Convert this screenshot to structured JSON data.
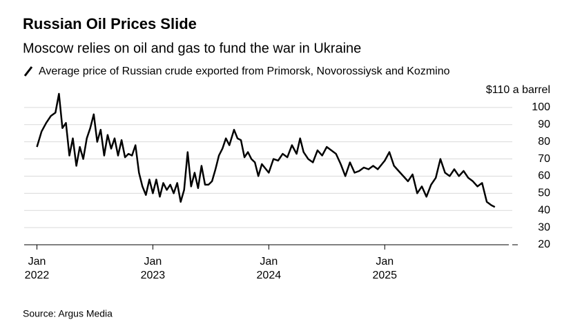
{
  "chart_data": {
    "type": "line",
    "title": "Russian Oil Prices Slide",
    "subtitle": "Moscow relies on oil and gas to fund the war in Ukraine",
    "source": "Source: Argus Media",
    "x": [
      2022.0,
      2022.04,
      2022.08,
      2022.12,
      2022.16,
      2022.19,
      2022.22,
      2022.25,
      2022.28,
      2022.31,
      2022.34,
      2022.37,
      2022.4,
      2022.43,
      2022.46,
      2022.49,
      2022.52,
      2022.55,
      2022.58,
      2022.61,
      2022.64,
      2022.67,
      2022.7,
      2022.73,
      2022.76,
      2022.79,
      2022.82,
      2022.85,
      2022.88,
      2022.91,
      2022.94,
      2022.97,
      2023.0,
      2023.03,
      2023.06,
      2023.09,
      2023.12,
      2023.15,
      2023.18,
      2023.21,
      2023.24,
      2023.27,
      2023.3,
      2023.33,
      2023.36,
      2023.39,
      2023.42,
      2023.45,
      2023.48,
      2023.51,
      2023.54,
      2023.57,
      2023.6,
      2023.63,
      2023.66,
      2023.7,
      2023.73,
      2023.76,
      2023.79,
      2023.82,
      2023.85,
      2023.88,
      2023.91,
      2023.94,
      2024.0,
      2024.04,
      2024.08,
      2024.12,
      2024.16,
      2024.2,
      2024.24,
      2024.27,
      2024.3,
      2024.34,
      2024.38,
      2024.42,
      2024.46,
      2024.5,
      2024.54,
      2024.58,
      2024.62,
      2024.66,
      2024.7,
      2024.74,
      2024.78,
      2024.82,
      2024.86,
      2024.9,
      2024.94,
      2025.0,
      2025.04,
      2025.08,
      2025.12,
      2025.16,
      2025.2,
      2025.24,
      2025.28,
      2025.32,
      2025.36,
      2025.4,
      2025.44,
      2025.48,
      2025.52,
      2025.56,
      2025.6,
      2025.64,
      2025.68,
      2025.72,
      2025.76,
      2025.8,
      2025.84,
      2025.88,
      2025.92,
      2025.95
    ],
    "series": [
      {
        "name": "Average price of Russian crude exported from Primorsk, Novorossiysk and Kozmino",
        "color": "#000000",
        "values": [
          77,
          86,
          91,
          95,
          97,
          108,
          88,
          91,
          72,
          82,
          66,
          77,
          70,
          82,
          88,
          96,
          80,
          87,
          72,
          84,
          76,
          82,
          72,
          81,
          71,
          73,
          72,
          78,
          62,
          54,
          49,
          58,
          50,
          58,
          48,
          56,
          52,
          55,
          50,
          56,
          45,
          52,
          74,
          54,
          62,
          53,
          66,
          55,
          55,
          57,
          64,
          72,
          76,
          82,
          78,
          87,
          82,
          81,
          71,
          74,
          70,
          68,
          60,
          67,
          62,
          70,
          69,
          73,
          71,
          78,
          73,
          82,
          74,
          70,
          68,
          75,
          72,
          77,
          75,
          73,
          67,
          60,
          68,
          62,
          63,
          65,
          64,
          66,
          64,
          69,
          74,
          66,
          63,
          60,
          57,
          61,
          50,
          54,
          48,
          55,
          59,
          70,
          62,
          60,
          64,
          60,
          63,
          59,
          57,
          54,
          56,
          45,
          43,
          42
        ]
      }
    ],
    "xlim": [
      2021.89,
      2026.1
    ],
    "xticks": [
      {
        "value": 2022,
        "label": "Jan 2022"
      },
      {
        "value": 2023,
        "label": "Jan 2023"
      },
      {
        "value": 2024,
        "label": "Jan 2024"
      },
      {
        "value": 2025,
        "label": "Jan 2025"
      }
    ],
    "ylim": [
      20,
      110
    ],
    "yticks": [
      20,
      30,
      40,
      50,
      60,
      70,
      80,
      90,
      100,
      {
        "value": 110,
        "label": "$110 a barrel"
      }
    ],
    "grid": true
  }
}
